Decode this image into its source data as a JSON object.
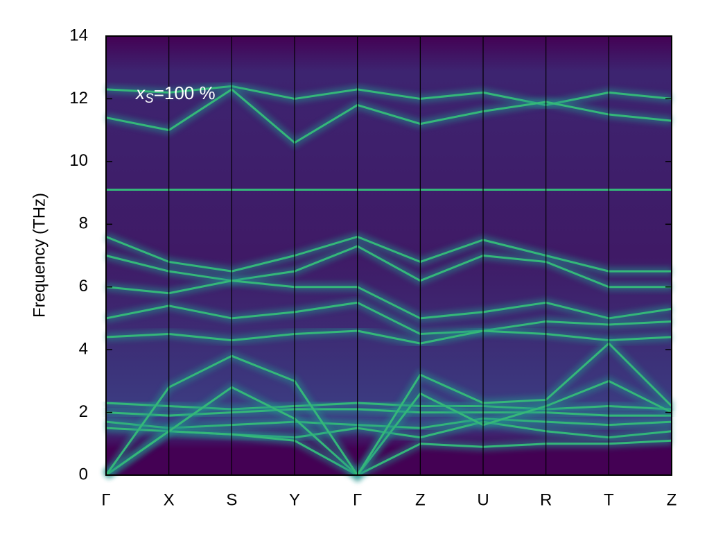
{
  "chart_data": {
    "type": "line",
    "ylabel": "Frequency (THz)",
    "annotation": {
      "var": "x",
      "sub": "S",
      "rest": "=100 %"
    },
    "categories": [
      "Γ",
      "X",
      "S",
      "Y",
      "Γ",
      "Z",
      "U",
      "R",
      "T",
      "Z"
    ],
    "ylim": [
      0,
      14
    ],
    "yticks": [
      0,
      2,
      4,
      6,
      8,
      10,
      12,
      14
    ],
    "color": "#35b779",
    "series": [
      {
        "values": [
          12.3,
          12.2,
          12.4,
          12.0,
          12.3,
          12.0,
          12.2,
          11.8,
          12.2,
          12.0
        ]
      },
      {
        "values": [
          11.4,
          11.0,
          12.3,
          10.6,
          11.8,
          11.2,
          11.6,
          11.9,
          11.5,
          11.3
        ]
      },
      {
        "values": [
          9.1,
          9.1,
          9.1,
          9.1,
          9.1,
          9.1,
          9.1,
          9.1,
          9.1,
          9.1
        ]
      },
      {
        "values": [
          7.6,
          6.8,
          6.5,
          7.0,
          7.6,
          6.8,
          7.5,
          7.0,
          6.5,
          6.5
        ]
      },
      {
        "values": [
          7.0,
          6.5,
          6.2,
          6.5,
          7.3,
          6.2,
          7.0,
          6.8,
          6.0,
          6.0
        ]
      },
      {
        "values": [
          6.0,
          5.8,
          6.2,
          6.0,
          6.0,
          5.0,
          5.2,
          5.5,
          5.0,
          5.3
        ]
      },
      {
        "values": [
          5.0,
          5.4,
          5.0,
          5.2,
          5.5,
          4.5,
          4.6,
          4.9,
          4.8,
          4.9
        ]
      },
      {
        "values": [
          4.4,
          4.5,
          4.3,
          4.5,
          4.6,
          4.2,
          4.6,
          4.5,
          4.3,
          4.4
        ]
      },
      {
        "values": [
          2.3,
          2.2,
          2.1,
          2.2,
          2.3,
          2.2,
          2.2,
          2.1,
          2.2,
          2.1
        ]
      },
      {
        "values": [
          2.0,
          1.9,
          2.0,
          2.1,
          2.1,
          2.0,
          2.0,
          2.0,
          1.9,
          1.9
        ]
      },
      {
        "values": [
          1.7,
          1.5,
          1.6,
          1.7,
          1.6,
          1.5,
          1.8,
          1.7,
          1.6,
          1.7
        ]
      },
      {
        "values": [
          1.5,
          1.4,
          1.3,
          1.2,
          1.5,
          1.2,
          1.7,
          1.4,
          1.2,
          1.4
        ]
      },
      {
        "values": [
          0,
          1.4,
          1.3,
          1.1,
          0,
          1.0,
          0.9,
          1.0,
          1.0,
          1.1
        ]
      },
      {
        "values": [
          0,
          1.4,
          2.8,
          1.8,
          0,
          2.6,
          1.6,
          2.2,
          3.0,
          2.0
        ]
      },
      {
        "values": [
          0,
          2.8,
          3.8,
          3.0,
          0,
          3.2,
          2.3,
          2.4,
          4.2,
          2.2
        ]
      }
    ]
  }
}
